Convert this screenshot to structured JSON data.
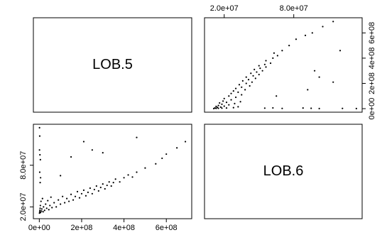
{
  "chart_data": {
    "type": "pairs",
    "variables": [
      {
        "name": "LOB.5",
        "lim": [
          -28000000.0,
          720000000.0
        ],
        "ticks": [
          {
            "value": 0,
            "label": "0e+00"
          },
          {
            "value": 200000000.0,
            "label": "2e+08"
          },
          {
            "value": 400000000.0,
            "label": "4e+08"
          },
          {
            "value": 600000000.0,
            "label": "6e+08"
          }
        ],
        "values": [
          1000000.0,
          2000000.0,
          3000000.0,
          4000000.0,
          5000000.0,
          6000000.0,
          8000000.0,
          10000000.0,
          12000000.0,
          15000000.0,
          18000000.0,
          20000000.0,
          25000000.0,
          30000000.0,
          35000000.0,
          40000000.0,
          45000000.0,
          50000000.0,
          55000000.0,
          60000000.0,
          70000000.0,
          80000000.0,
          90000000.0,
          100000000.0,
          110000000.0,
          120000000.0,
          130000000.0,
          140000000.0,
          150000000.0,
          160000000.0,
          170000000.0,
          180000000.0,
          190000000.0,
          200000000.0,
          210000000.0,
          220000000.0,
          230000000.0,
          240000000.0,
          250000000.0,
          260000000.0,
          270000000.0,
          280000000.0,
          290000000.0,
          300000000.0,
          310000000.0,
          320000000.0,
          330000000.0,
          340000000.0,
          350000000.0,
          360000000.0,
          380000000.0,
          400000000.0,
          420000000.0,
          440000000.0,
          460000000.0,
          500000000.0,
          550000000.0,
          580000000.0,
          600000000.0,
          650000000.0,
          690000000.0,
          1000000.0,
          3000000.0,
          5000000.0,
          2000000.0,
          4000000.0,
          1000000.0,
          6000000.0,
          150000000.0,
          300000000.0,
          250000000.0,
          460000000.0,
          100000000.0,
          2000000.0,
          210000000.0
        ]
      },
      {
        "name": "LOB.6",
        "lim": [
          3000000.0,
          139000000.0
        ],
        "ticks": [
          {
            "value": 20000000.0,
            "label": "2.0e+07"
          },
          {
            "value": 80000000.0,
            "label": "8.0e+07"
          }
        ],
        "values": [
          11000000.0,
          13000000.0,
          15000000.0,
          18000000.0,
          22000000.0,
          12000000.0,
          28000000.0,
          14000000.0,
          17000000.0,
          32000000.0,
          13000000.0,
          20000000.0,
          15000000.0,
          24000000.0,
          18000000.0,
          29000000.0,
          16000000.0,
          22000000.0,
          34000000.0,
          19000000.0,
          26000000.0,
          20000000.0,
          30000000.0,
          24000000.0,
          35000000.0,
          26000000.0,
          32000000.0,
          28000000.0,
          38000000.0,
          30000000.0,
          35000000.0,
          42000000.0,
          33000000.0,
          39000000.0,
          44000000.0,
          36000000.0,
          41000000.0,
          47000000.0,
          39000000.0,
          45000000.0,
          50000000.0,
          43000000.0,
          48000000.0,
          53000000.0,
          46000000.0,
          51000000.0,
          56000000.0,
          50000000.0,
          55000000.0,
          60000000.0,
          56000000.0,
          62000000.0,
          66000000.0,
          63000000.0,
          70000000.0,
          76000000.0,
          82000000.0,
          90000000.0,
          96000000.0,
          105000000.0,
          114000000.0,
          134000000.0,
          95000000.0,
          88000000.0,
          70000000.0,
          55000000.0,
          102000000.0,
          62000000.0,
          92000000.0,
          98000000.0,
          102000000.0,
          120000000.0,
          65000000.0,
          122000000.0,
          114000000.0
        ]
      }
    ]
  }
}
